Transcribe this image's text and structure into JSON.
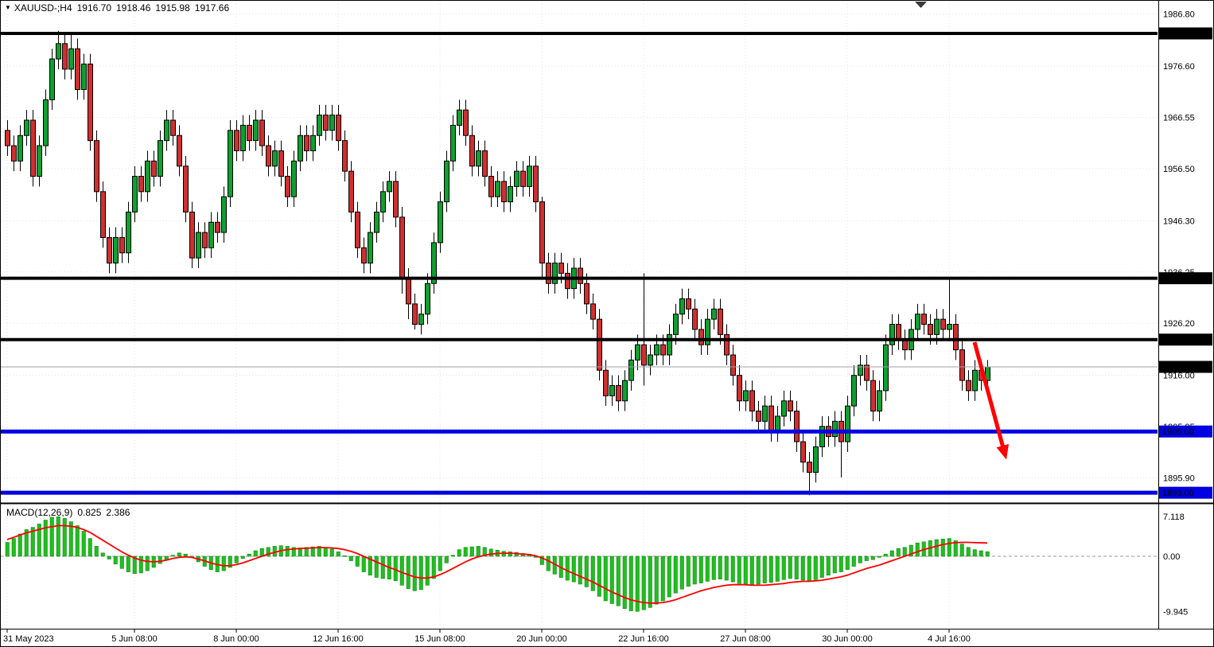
{
  "header": {
    "menu_icon": "▼",
    "symbol": "XAUUSD-;H4",
    "open": "1916.70",
    "high": "1918.46",
    "low": "1915.98",
    "close": "1917.66"
  },
  "macd_label": {
    "name": "MACD(12,26,9)",
    "main": "0.825",
    "signal": "2.386"
  },
  "colors": {
    "background": "#ffffff",
    "outline": "#000000",
    "bull": "#0fa02f",
    "bear": "#d12f2f",
    "resistance": "#000000",
    "support": "#0000e0",
    "current_price_line": "#a0a0a0",
    "tag_black_bg": "#000000",
    "tag_blue_bg": "#0000e0",
    "tag_text": "#ffffff",
    "macd_hist": "#1fbf1f",
    "macd_hist_edge": "#0e7a0e",
    "macd_signal": "#ff0000",
    "arrow": "#ff0000",
    "grid": "#e3e3e3"
  },
  "chart_data": {
    "type": "candlestick",
    "symbol": "XAUUSD",
    "timeframe": "H4",
    "last_quote": {
      "open": 1916.7,
      "high": 1918.46,
      "low": 1915.98,
      "close": 1917.66
    },
    "price_range_visible": [
      1890.0,
      1988.3
    ],
    "y_ticks": [
      {
        "price": 1986.8,
        "label": "1986.80"
      },
      {
        "price": 1976.6,
        "label": "1976.60"
      },
      {
        "price": 1966.55,
        "label": "1966.55"
      },
      {
        "price": 1956.5,
        "label": "1956.50"
      },
      {
        "price": 1946.3,
        "label": "1946.30"
      },
      {
        "price": 1936.25,
        "label": "1936.25"
      },
      {
        "price": 1926.2,
        "label": "1926.20"
      },
      {
        "price": 1916.0,
        "label": "1916.00"
      },
      {
        "price": 1905.95,
        "label": "1905.95"
      },
      {
        "price": 1895.9,
        "label": "1895.90"
      }
    ],
    "y_tags": [
      {
        "price": 1983.0,
        "label": "1983.00",
        "style": "black"
      },
      {
        "price": 1935.03,
        "label": "1935.03",
        "style": "black"
      },
      {
        "price": 1923.0,
        "label": "1923.00",
        "style": "black"
      },
      {
        "price": 1917.66,
        "label": "1917.66",
        "style": "black"
      },
      {
        "price": 1905.0,
        "label": "1905.00",
        "style": "blue"
      },
      {
        "price": 1893.0,
        "label": "1893.00",
        "style": "blue"
      }
    ],
    "x_ticks": [
      {
        "index": 0,
        "label": "31 May 2023"
      },
      {
        "index": 20,
        "label": "5 Jun 08:00"
      },
      {
        "index": 36,
        "label": "8 Jun 00:00"
      },
      {
        "index": 52,
        "label": "12 Jun 16:00"
      },
      {
        "index": 68,
        "label": "15 Jun 08:00"
      },
      {
        "index": 84,
        "label": "20 Jun 00:00"
      },
      {
        "index": 100,
        "label": "22 Jun 16:00"
      },
      {
        "index": 116,
        "label": "27 Jun 08:00"
      },
      {
        "index": 132,
        "label": "30 Jun 00:00"
      },
      {
        "index": 148,
        "label": "4 Jul 16:00"
      }
    ],
    "levels": {
      "resistance": [
        1983.0,
        1935.03,
        1923.0
      ],
      "support": [
        1905.0,
        1893.0
      ]
    },
    "current_price": 1917.66,
    "annotation_arrow": {
      "from_index": 152,
      "from_price": 1922.5,
      "to_index": 157,
      "to_price": 1899.5
    },
    "ohlc": [
      [
        1964,
        1966,
        1959,
        1961
      ],
      [
        1961,
        1963,
        1956,
        1958
      ],
      [
        1958,
        1965,
        1956,
        1963
      ],
      [
        1963,
        1968,
        1961,
        1966
      ],
      [
        1966,
        1968,
        1953,
        1955
      ],
      [
        1955,
        1963,
        1953,
        1961
      ],
      [
        1961,
        1972,
        1959,
        1970
      ],
      [
        1970,
        1980,
        1968,
        1978
      ],
      [
        1978,
        1983.5,
        1976,
        1981
      ],
      [
        1981,
        1983,
        1974,
        1976
      ],
      [
        1976,
        1983,
        1974,
        1980
      ],
      [
        1980,
        1982,
        1970,
        1972
      ],
      [
        1972,
        1979,
        1970,
        1977
      ],
      [
        1977,
        1979,
        1960,
        1962
      ],
      [
        1962,
        1964,
        1950,
        1952
      ],
      [
        1952,
        1954,
        1941,
        1943
      ],
      [
        1943,
        1945,
        1936,
        1938
      ],
      [
        1938,
        1945,
        1936,
        1943
      ],
      [
        1943,
        1945,
        1938,
        1940
      ],
      [
        1940,
        1950,
        1938,
        1948
      ],
      [
        1948,
        1957,
        1946,
        1955
      ],
      [
        1955,
        1957,
        1950,
        1952
      ],
      [
        1952,
        1960,
        1950,
        1958
      ],
      [
        1958,
        1960,
        1953,
        1955
      ],
      [
        1955,
        1964,
        1953,
        1962
      ],
      [
        1962,
        1968,
        1960,
        1966
      ],
      [
        1966,
        1968,
        1961,
        1963
      ],
      [
        1963,
        1965,
        1955,
        1957
      ],
      [
        1957,
        1959,
        1946,
        1948
      ],
      [
        1948,
        1950,
        1937,
        1939
      ],
      [
        1939,
        1946,
        1937,
        1944
      ],
      [
        1944,
        1946,
        1939,
        1941
      ],
      [
        1941,
        1948,
        1939,
        1946
      ],
      [
        1946,
        1948,
        1942,
        1944
      ],
      [
        1944,
        1953,
        1942,
        1951
      ],
      [
        1951,
        1966,
        1949,
        1964
      ],
      [
        1964,
        1966,
        1958,
        1960
      ],
      [
        1960,
        1967,
        1958,
        1965
      ],
      [
        1965,
        1967,
        1960,
        1962
      ],
      [
        1962,
        1968,
        1960,
        1966
      ],
      [
        1966,
        1968,
        1959,
        1961
      ],
      [
        1961,
        1963,
        1955,
        1957
      ],
      [
        1957,
        1962,
        1955,
        1960
      ],
      [
        1960,
        1962,
        1953,
        1955
      ],
      [
        1955,
        1957,
        1949,
        1951
      ],
      [
        1951,
        1960,
        1949,
        1958
      ],
      [
        1958,
        1965,
        1956,
        1963
      ],
      [
        1963,
        1965,
        1958,
        1960
      ],
      [
        1960,
        1965,
        1958,
        1963
      ],
      [
        1963,
        1969,
        1961,
        1967
      ],
      [
        1967,
        1969,
        1962,
        1964
      ],
      [
        1964,
        1969,
        1962,
        1967
      ],
      [
        1967,
        1969,
        1960,
        1962
      ],
      [
        1962,
        1964,
        1954,
        1956
      ],
      [
        1956,
        1958,
        1946,
        1948
      ],
      [
        1948,
        1950,
        1939,
        1941
      ],
      [
        1941,
        1943,
        1936,
        1938
      ],
      [
        1938,
        1946,
        1936,
        1944
      ],
      [
        1944,
        1950,
        1942,
        1948
      ],
      [
        1948,
        1954,
        1946,
        1952
      ],
      [
        1952,
        1956,
        1950,
        1954
      ],
      [
        1954,
        1956,
        1945,
        1947
      ],
      [
        1947,
        1949,
        1932,
        1935
      ],
      [
        1935,
        1937,
        1927,
        1930
      ],
      [
        1930,
        1932,
        1925,
        1926
      ],
      [
        1926,
        1930,
        1924,
        1928
      ],
      [
        1928,
        1936,
        1926,
        1934
      ],
      [
        1934,
        1944,
        1932,
        1942
      ],
      [
        1942,
        1952,
        1940,
        1950
      ],
      [
        1950,
        1960,
        1948,
        1958
      ],
      [
        1958,
        1967,
        1956,
        1965
      ],
      [
        1965,
        1970,
        1963,
        1968
      ],
      [
        1968,
        1970,
        1961,
        1963
      ],
      [
        1963,
        1965,
        1955,
        1957
      ],
      [
        1957,
        1962,
        1955,
        1960
      ],
      [
        1960,
        1962,
        1953,
        1955
      ],
      [
        1955,
        1957,
        1949,
        1951
      ],
      [
        1951,
        1956,
        1949,
        1954
      ],
      [
        1954,
        1956,
        1948,
        1950
      ],
      [
        1950,
        1955,
        1948,
        1953
      ],
      [
        1953,
        1958,
        1951,
        1956
      ],
      [
        1956,
        1958,
        1951,
        1953
      ],
      [
        1953,
        1959,
        1951,
        1957
      ],
      [
        1957,
        1959,
        1948,
        1950
      ],
      [
        1950,
        1951,
        1935,
        1938
      ],
      [
        1938,
        1940,
        1932,
        1934
      ],
      [
        1934,
        1940,
        1932,
        1938
      ],
      [
        1938,
        1940,
        1934,
        1936
      ],
      [
        1936,
        1938,
        1931,
        1933
      ],
      [
        1933,
        1939,
        1931,
        1937
      ],
      [
        1937,
        1939,
        1932,
        1934
      ],
      [
        1934,
        1936,
        1928,
        1930
      ],
      [
        1930,
        1932,
        1925,
        1927
      ],
      [
        1927,
        1929,
        1915,
        1917
      ],
      [
        1917,
        1919,
        1910,
        1912
      ],
      [
        1912,
        1916,
        1910,
        1914
      ],
      [
        1914,
        1916,
        1909,
        1911
      ],
      [
        1911,
        1917,
        1909,
        1915
      ],
      [
        1915,
        1921,
        1913,
        1919
      ],
      [
        1919,
        1924,
        1917,
        1922
      ],
      [
        1922,
        1936,
        1914,
        1918
      ],
      [
        1918,
        1922,
        1916,
        1920
      ],
      [
        1920,
        1924,
        1918,
        1922
      ],
      [
        1922,
        1924,
        1918,
        1920
      ],
      [
        1920,
        1926,
        1918,
        1924
      ],
      [
        1924,
        1930,
        1922,
        1928
      ],
      [
        1928,
        1933,
        1926,
        1931
      ],
      [
        1931,
        1933,
        1927,
        1929
      ],
      [
        1929,
        1931,
        1923,
        1925
      ],
      [
        1925,
        1927,
        1920,
        1922
      ],
      [
        1922,
        1929,
        1920,
        1927
      ],
      [
        1927,
        1931,
        1925,
        1929
      ],
      [
        1929,
        1931,
        1922,
        1924
      ],
      [
        1924,
        1926,
        1918,
        1920
      ],
      [
        1920,
        1922,
        1914,
        1916
      ],
      [
        1916,
        1918,
        1909,
        1911
      ],
      [
        1911,
        1915,
        1909,
        1913
      ],
      [
        1913,
        1915,
        1907,
        1909
      ],
      [
        1909,
        1911,
        1905,
        1907
      ],
      [
        1907,
        1912,
        1905,
        1910
      ],
      [
        1910,
        1912,
        1903,
        1905
      ],
      [
        1905,
        1910,
        1903,
        1908
      ],
      [
        1908,
        1913,
        1906,
        1911
      ],
      [
        1911,
        1913,
        1907,
        1909
      ],
      [
        1909,
        1911,
        1901,
        1903
      ],
      [
        1903,
        1905,
        1897,
        1899
      ],
      [
        1899,
        1901,
        1892.5,
        1897
      ],
      [
        1897,
        1904,
        1895,
        1902
      ],
      [
        1902,
        1908,
        1900,
        1906
      ],
      [
        1906,
        1908,
        1902,
        1904
      ],
      [
        1904,
        1909,
        1902,
        1907
      ],
      [
        1907,
        1909,
        1896,
        1903
      ],
      [
        1903,
        1912,
        1901,
        1910
      ],
      [
        1910,
        1918,
        1908,
        1916
      ],
      [
        1916,
        1920,
        1914,
        1918
      ],
      [
        1918,
        1920,
        1913,
        1915
      ],
      [
        1915,
        1917,
        1907,
        1909
      ],
      [
        1909,
        1915,
        1907,
        1913
      ],
      [
        1913,
        1924,
        1911,
        1922
      ],
      [
        1922,
        1928,
        1920,
        1926
      ],
      [
        1926,
        1928,
        1921,
        1923
      ],
      [
        1923,
        1925,
        1919,
        1921
      ],
      [
        1921,
        1927,
        1919,
        1925
      ],
      [
        1925,
        1930,
        1923,
        1928
      ],
      [
        1928,
        1930,
        1924,
        1926
      ],
      [
        1926,
        1928,
        1922,
        1924
      ],
      [
        1924,
        1929,
        1922,
        1927
      ],
      [
        1927,
        1929,
        1923,
        1925
      ],
      [
        1925,
        1935,
        1923,
        1926
      ],
      [
        1926,
        1928,
        1919,
        1921
      ],
      [
        1921,
        1923,
        1913,
        1915
      ],
      [
        1915,
        1917,
        1911,
        1913
      ],
      [
        1913,
        1919,
        1911,
        1917
      ],
      [
        1917,
        1919,
        1913,
        1915
      ],
      [
        1915,
        1919,
        1913,
        1917.66
      ]
    ],
    "macd": {
      "type": "histogram+line",
      "params": "12,26,9",
      "value_main": 0.825,
      "value_signal": 2.386,
      "ylim": [
        -9.945,
        7.118
      ],
      "y_ticks": [
        {
          "value": 7.118,
          "label": "7.118"
        },
        {
          "value": 0,
          "label": "0.00"
        },
        {
          "value": -9.945,
          "label": "-9.945"
        }
      ],
      "histogram": [
        2.5,
        3.2,
        4,
        4.8,
        5.2,
        5.8,
        6.5,
        7,
        7.1,
        6.8,
        6.2,
        5.5,
        4.5,
        3.2,
        1.8,
        0.6,
        -0.5,
        -1.4,
        -2.2,
        -2.8,
        -3.1,
        -3,
        -2.6,
        -2,
        -1.3,
        -0.6,
        0.2,
        0.6,
        0.4,
        -0.2,
        -1,
        -1.8,
        -2.4,
        -2.8,
        -2.6,
        -2,
        -1.2,
        -0.4,
        0.4,
        1,
        1.4,
        1.6,
        1.8,
        1.9,
        1.8,
        1.6,
        1.5,
        1.6,
        1.7,
        1.8,
        1.6,
        1.3,
        0.8,
        0.1,
        -0.8,
        -1.8,
        -2.8,
        -3.4,
        -3.8,
        -4,
        -4.1,
        -4.4,
        -5.2,
        -5.8,
        -6.2,
        -6,
        -5.2,
        -4,
        -2.6,
        -1.2,
        0.2,
        1.2,
        1.6,
        1.7,
        1.8,
        1.6,
        1.3,
        1.1,
        0.9,
        0.8,
        0.7,
        0.5,
        0.4,
        -0.2,
        -1.5,
        -2.6,
        -3.2,
        -3.8,
        -4.3,
        -4.6,
        -5,
        -5.5,
        -6.2,
        -7.2,
        -8,
        -8.5,
        -8.9,
        -9.4,
        -9.8,
        -9.9,
        -9.6,
        -9.2,
        -8.6,
        -8,
        -7.3,
        -6.6,
        -5.9,
        -5.4,
        -5,
        -4.8,
        -4.5,
        -4.2,
        -4.1,
        -4.3,
        -4.6,
        -4.9,
        -5,
        -5.1,
        -5,
        -4.8,
        -4.7,
        -4.5,
        -4.2,
        -4,
        -4.1,
        -4.3,
        -4.4,
        -4.2,
        -3.8,
        -3.4,
        -3,
        -2.8,
        -2.4,
        -1.8,
        -1.2,
        -0.8,
        -0.6,
        -0.2,
        0.4,
        1,
        1.4,
        1.6,
        2,
        2.4,
        2.6,
        2.8,
        3,
        3.1,
        3.2,
        2.8,
        2.2,
        1.6,
        1.2,
        1,
        0.825
      ],
      "signal": [
        3,
        3.4,
        3.8,
        4.2,
        4.5,
        4.8,
        5.1,
        5.3,
        5.5,
        5.5,
        5.4,
        5.2,
        4.8,
        4.3,
        3.6,
        2.9,
        2.2,
        1.5,
        0.8,
        0.2,
        -0.3,
        -0.7,
        -0.9,
        -1,
        -0.9,
        -0.7,
        -0.4,
        -0.2,
        -0.1,
        -0.2,
        -0.5,
        -0.8,
        -1.2,
        -1.5,
        -1.7,
        -1.7,
        -1.5,
        -1.2,
        -0.8,
        -0.4,
        0,
        0.4,
        0.7,
        1,
        1.2,
        1.3,
        1.4,
        1.45,
        1.5,
        1.55,
        1.55,
        1.5,
        1.4,
        1.2,
        0.9,
        0.5,
        0,
        -0.5,
        -1,
        -1.5,
        -2,
        -2.4,
        -2.9,
        -3.3,
        -3.7,
        -3.9,
        -3.9,
        -3.7,
        -3.3,
        -2.8,
        -2.2,
        -1.6,
        -1,
        -0.5,
        -0.1,
        0.2,
        0.4,
        0.5,
        0.55,
        0.55,
        0.5,
        0.4,
        0.3,
        0.1,
        -0.3,
        -0.8,
        -1.4,
        -2,
        -2.6,
        -3.1,
        -3.6,
        -4.1,
        -4.6,
        -5.2,
        -5.8,
        -6.4,
        -6.9,
        -7.4,
        -7.8,
        -8.1,
        -8.3,
        -8.4,
        -8.4,
        -8.3,
        -8.1,
        -7.8,
        -7.4,
        -7,
        -6.6,
        -6.2,
        -5.9,
        -5.6,
        -5.4,
        -5.2,
        -5.1,
        -5.1,
        -5.1,
        -5.2,
        -5.2,
        -5.2,
        -5.1,
        -5,
        -4.9,
        -4.7,
        -4.6,
        -4.5,
        -4.5,
        -4.4,
        -4.3,
        -4.1,
        -3.9,
        -3.7,
        -3.4,
        -3,
        -2.6,
        -2.2,
        -1.9,
        -1.6,
        -1.2,
        -0.8,
        -0.4,
        0,
        0.4,
        0.8,
        1.2,
        1.5,
        1.8,
        2.1,
        2.3,
        2.45,
        2.5,
        2.5,
        2.45,
        2.42,
        2.386
      ]
    }
  }
}
